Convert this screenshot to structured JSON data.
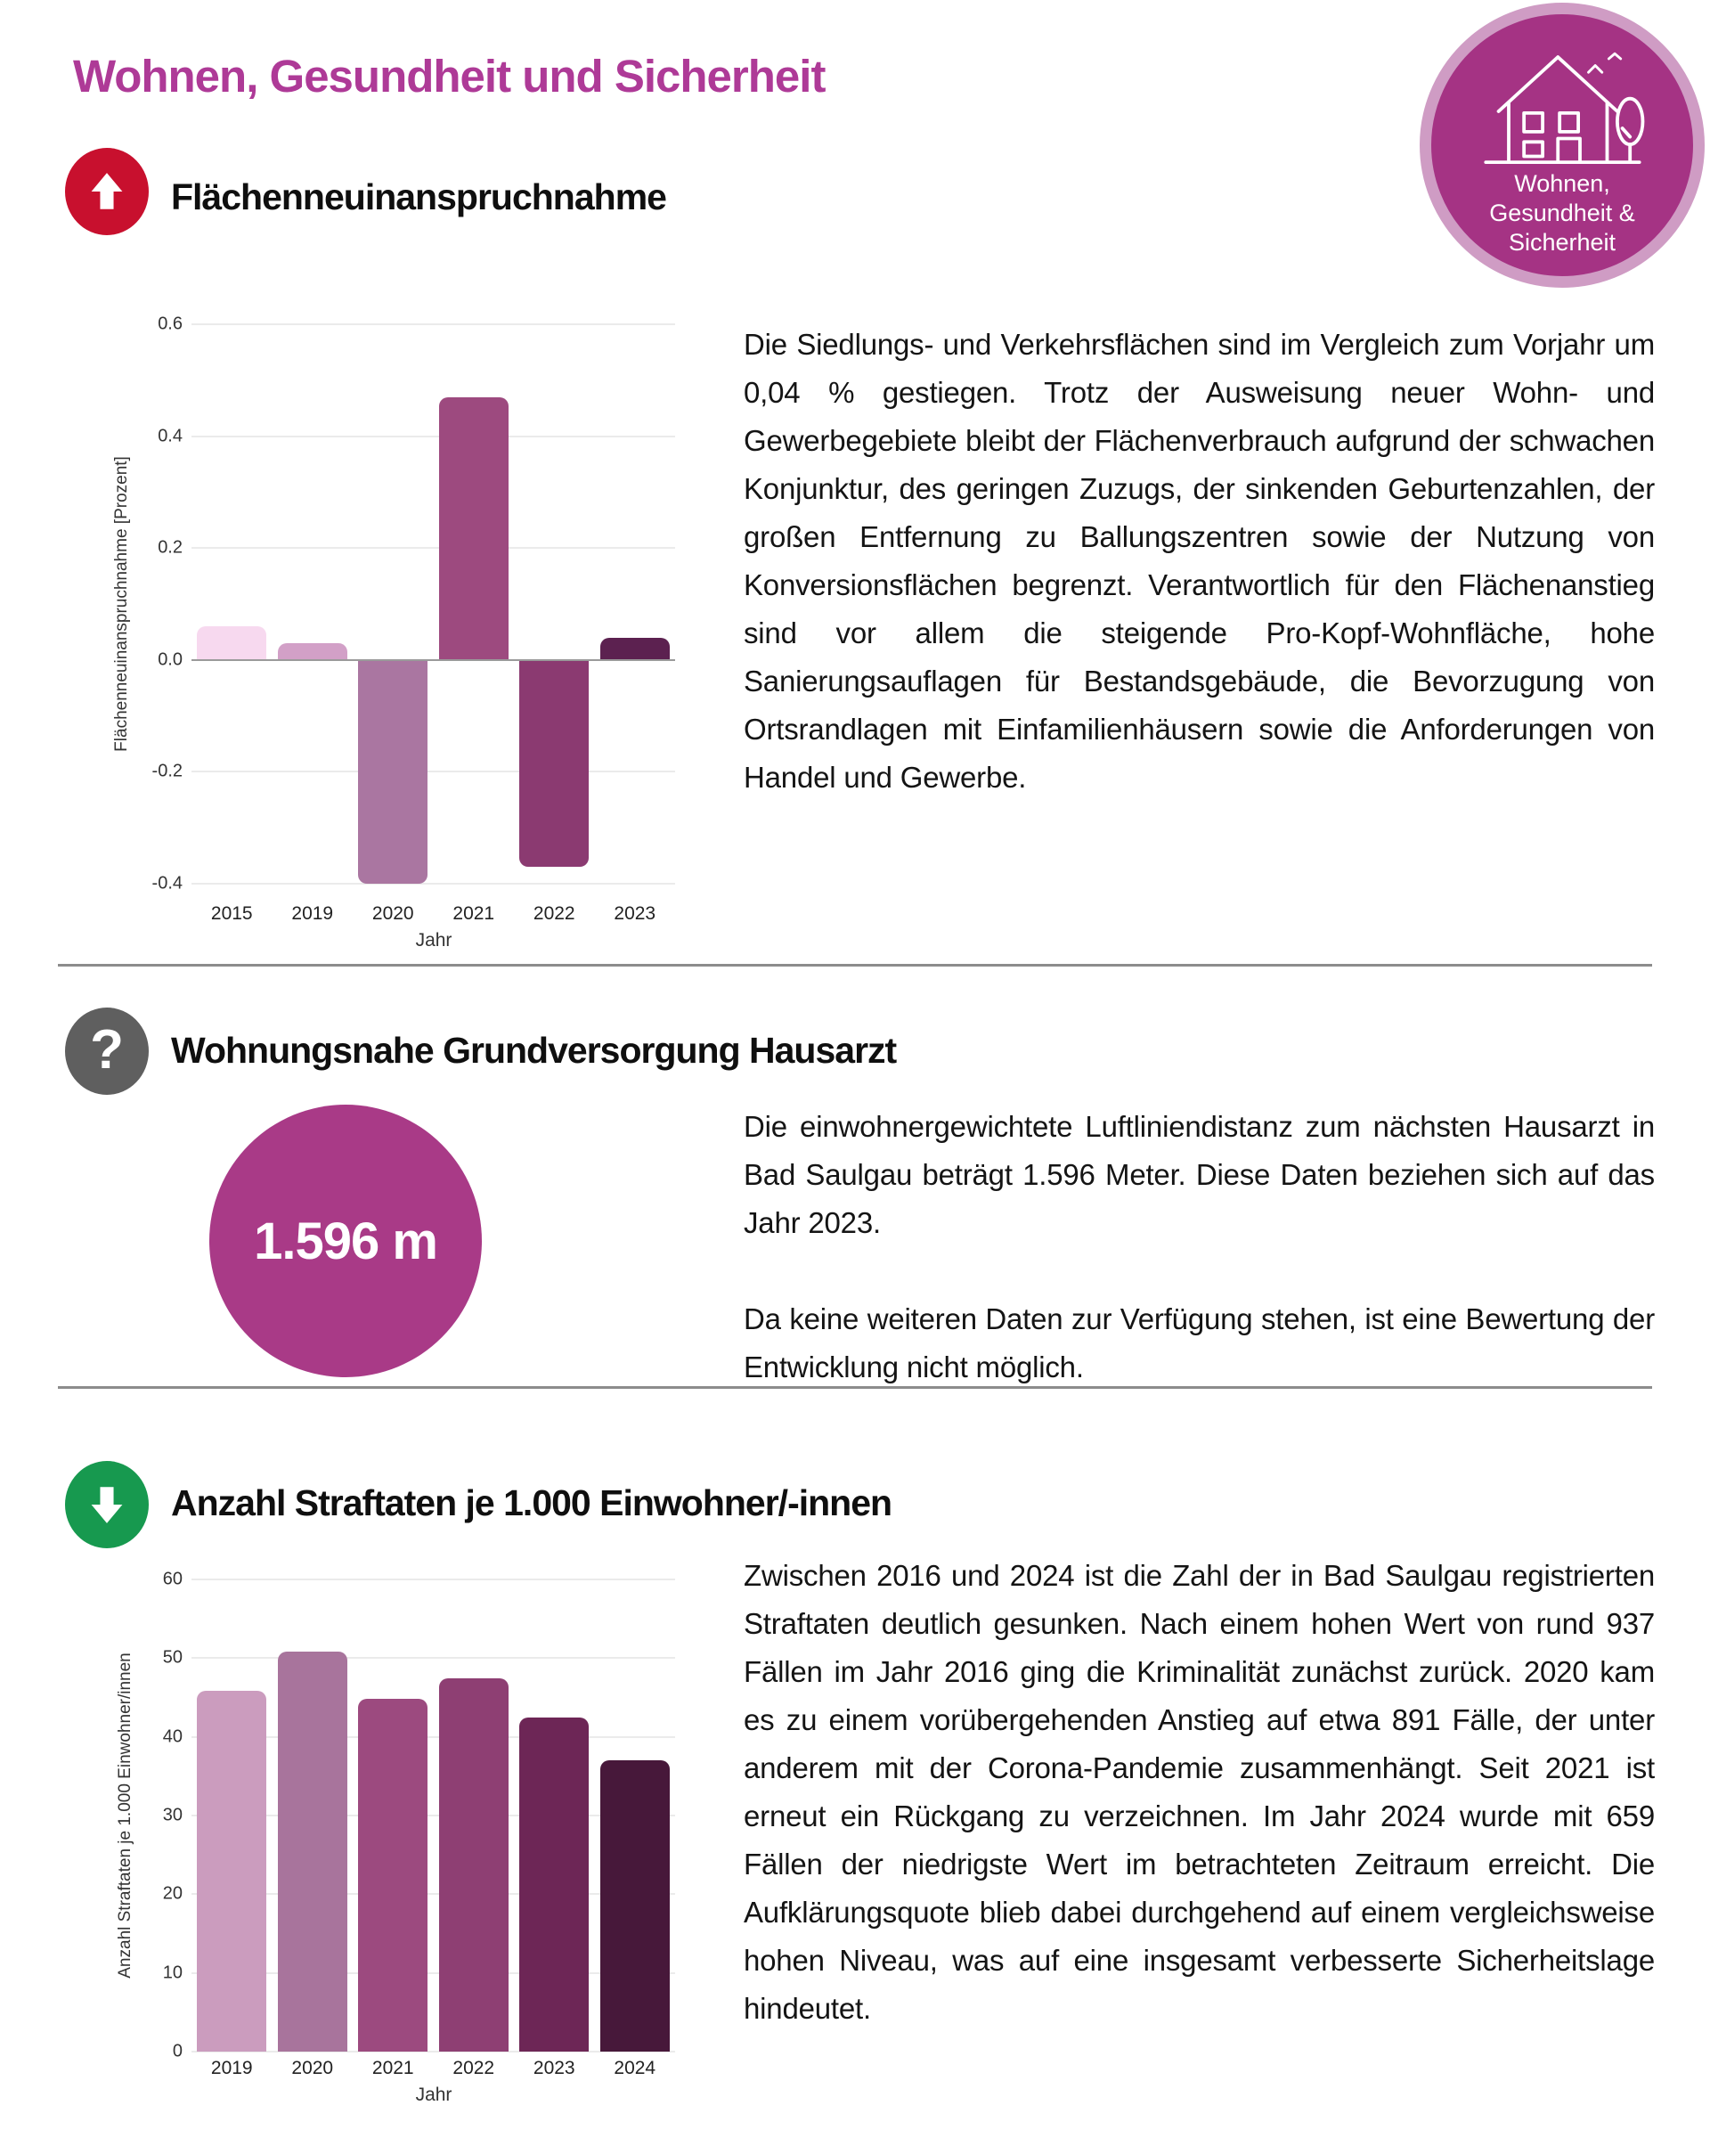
{
  "header": {
    "title": "Wohnen, Gesundheit und Sicherheit",
    "badge": {
      "line1": "Wohnen,",
      "line2": "Gesundheit &",
      "line3": "Sicherheit"
    }
  },
  "colors": {
    "title": "#ae3a97",
    "badge_fill": "#a53384",
    "badge_ring": "#cf9cc4",
    "icon_red": "#c8102e",
    "icon_gray": "#5f5f5f",
    "icon_green": "#17994f",
    "kpi_circle": "#a93a87",
    "divider": "#8c8c8c"
  },
  "sections": {
    "flaeche": {
      "heading": "Flächenneuinanspruchnahme",
      "icon": "arrow-up-icon",
      "text": "Die Siedlungs- und Verkehrsflächen sind im Vergleich zum Vorjahr um 0,04 % gestiegen. Trotz der Ausweisung neuer Wohn- und Gewerbegebiete bleibt der Flächenverbrauch aufgrund der schwachen Konjunktur, des geringen Zuzugs, der sinkenden Geburtenzahlen, der großen Entfernung zu Ballungszentren sowie der Nutzung von Konversionsflächen begrenzt. Verantwortlich für den Flächenanstieg sind vor allem die steigende Pro-Kopf-Wohnfläche, hohe Sanierungsauflagen für Bestandsgebäude, die Bevorzugung von Ortsrandlagen mit Einfamilienhäusern sowie die Anforderungen von Handel und Gewerbe."
    },
    "hausarzt": {
      "heading": "Wohnungsnahe Grundversorgung Hausarzt",
      "icon": "question-icon",
      "kpi_value": "1.596 m",
      "paragraph1": "Die einwohnergewichtete Luftliniendistanz zum nächsten Hausarzt in Bad Saulgau beträgt 1.596 Meter. Diese Daten beziehen sich auf das Jahr 2023.",
      "paragraph2": "Da keine weiteren Daten zur Verfügung stehen, ist eine Bewertung der Entwicklung nicht möglich."
    },
    "straftaten": {
      "heading": "Anzahl Straftaten je 1.000 Einwohner/-innen",
      "icon": "arrow-down-icon",
      "text": "Zwischen 2016 und 2024 ist die Zahl der in Bad Saulgau registrierten Straftaten deutlich gesunken. Nach einem hohen Wert von rund 937 Fällen im Jahr 2016 ging die Kriminalität zunächst zurück. 2020 kam es zu einem vorübergehenden Anstieg auf etwa 891 Fälle, der unter anderem mit der Corona-Pandemie zusammenhängt. Seit 2021 ist erneut ein Rückgang zu verzeichnen. Im Jahr 2024 wurde mit 659 Fällen der niedrigste Wert im betrachteten Zeitraum erreicht. Die Aufklärungsquote blieb dabei durchgehend auf einem vergleichsweise hohen Niveau, was auf eine insgesamt verbesserte Sicherheitslage hindeutet."
    }
  },
  "chart_data": [
    {
      "type": "bar",
      "title": "",
      "categories": [
        "2015",
        "2019",
        "2020",
        "2021",
        "2022",
        "2023"
      ],
      "values": [
        0.06,
        0.03,
        -0.4,
        0.47,
        -0.37,
        0.04
      ],
      "bar_colors": [
        "#f7d9ef",
        "#d2a0c7",
        "#aa76a1",
        "#9d4a7f",
        "#8b3a71",
        "#5c2150"
      ],
      "xlabel": "Jahr",
      "ylabel": "Flächenneuinanspruchnahme [Prozent]",
      "ylim": [
        -0.4,
        0.6
      ],
      "yticks": [
        {
          "v": 0.6,
          "label": "0.6"
        },
        {
          "v": 0.4,
          "label": "0.4"
        },
        {
          "v": 0.2,
          "label": "0.2"
        },
        {
          "v": 0.0,
          "label": "0.0"
        },
        {
          "v": -0.2,
          "label": "-0.2"
        },
        {
          "v": -0.4,
          "label": "-0.4"
        }
      ],
      "grid": true,
      "zero_line": true,
      "legend": "none"
    },
    {
      "type": "bar",
      "title": "",
      "categories": [
        "2019",
        "2020",
        "2021",
        "2022",
        "2023",
        "2024"
      ],
      "values": [
        45.9,
        50.8,
        44.8,
        47.4,
        42.5,
        37.0
      ],
      "bar_colors": [
        "#cb9cbe",
        "#a8749c",
        "#9c4a7f",
        "#8e3f73",
        "#6d2656",
        "#47183a"
      ],
      "xlabel": "Jahr",
      "ylabel": "Anzahl Straftaten je 1.000 Einwohner/innen",
      "ylim": [
        0,
        60
      ],
      "yticks": [
        {
          "v": 60,
          "label": "60"
        },
        {
          "v": 50,
          "label": "50"
        },
        {
          "v": 40,
          "label": "40"
        },
        {
          "v": 30,
          "label": "30"
        },
        {
          "v": 20,
          "label": "20"
        },
        {
          "v": 10,
          "label": "10"
        },
        {
          "v": 0,
          "label": "0"
        }
      ],
      "grid": true,
      "zero_line": false,
      "legend": "none"
    }
  ]
}
